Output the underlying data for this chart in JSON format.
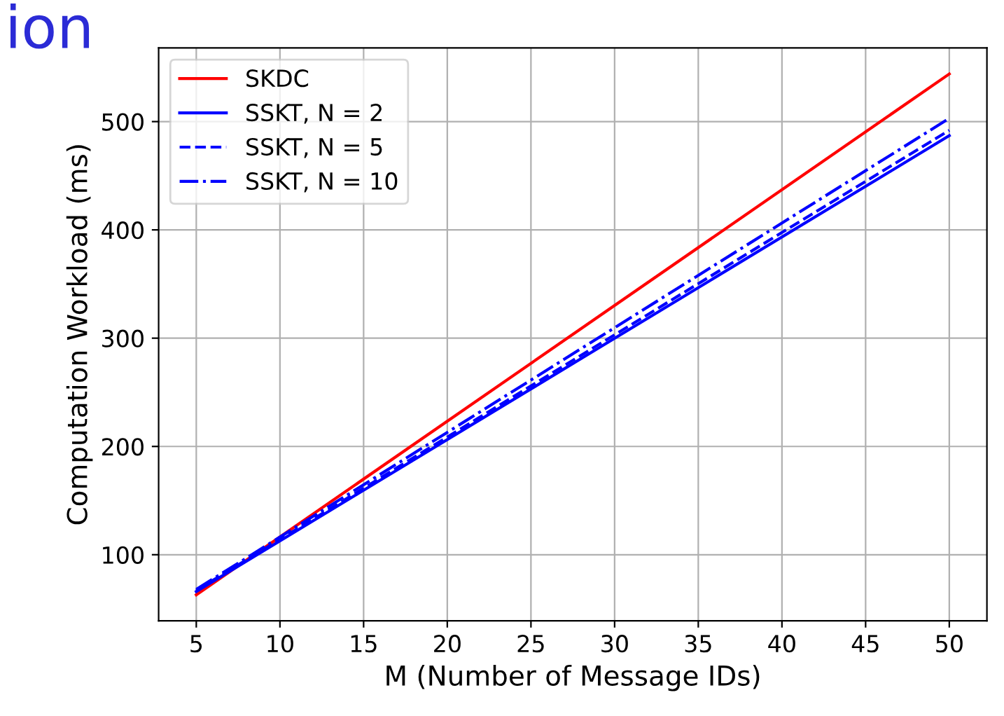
{
  "chart_data": {
    "type": "line",
    "xlabel": "M (Number of Message IDs)",
    "ylabel": "Computation Workload (ms)",
    "annotations": [
      "ion"
    ],
    "x": [
      5,
      50
    ],
    "series": [
      {
        "name": "SKDC",
        "color": "#ff0000",
        "values": [
          63,
          544
        ],
        "line_style": "solid"
      },
      {
        "name": "SSKT, N = 2",
        "color": "#0000ff",
        "values": [
          66,
          487
        ],
        "line_style": "solid"
      },
      {
        "name": "SSKT, N = 5",
        "color": "#0000ff",
        "values": [
          67,
          492
        ],
        "line_style": "dashed"
      },
      {
        "name": "SSKT, N = 10",
        "color": "#0000ff",
        "values": [
          68,
          503
        ],
        "line_style": "dashdot"
      }
    ],
    "xlim": [
      2.75,
      52.25
    ],
    "ylim": [
      39,
      568
    ],
    "xticks": [
      5,
      10,
      15,
      20,
      25,
      30,
      35,
      40,
      45,
      50
    ],
    "yticks": [
      100,
      200,
      300,
      400,
      500
    ],
    "grid": true,
    "legend": "top left",
    "marker": "none"
  }
}
